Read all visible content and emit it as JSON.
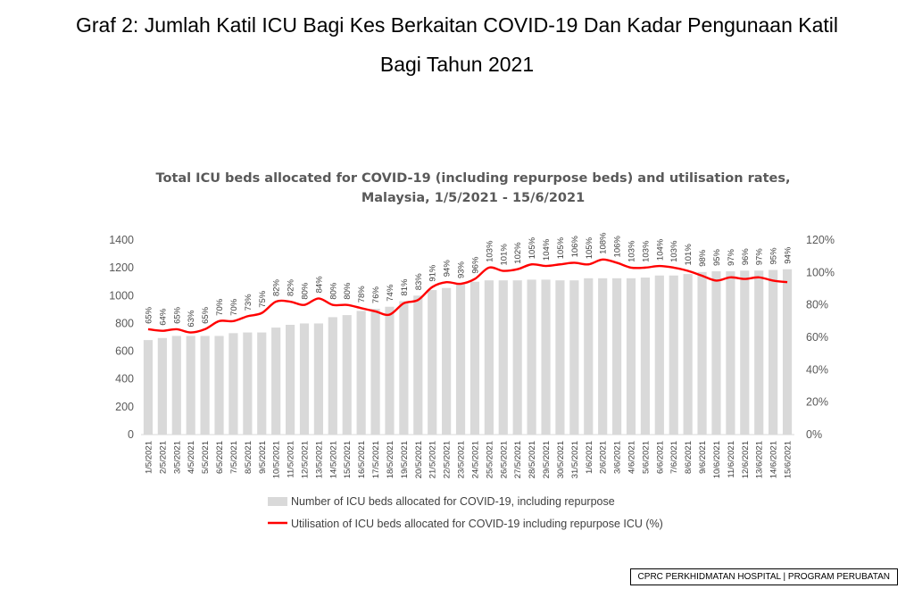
{
  "page": {
    "heading_line1": "Graf 2: Jumlah Katil ICU Bagi Kes Berkaitan COVID-19 Dan Kadar Pengunaan Katil",
    "heading_line2": "Bagi Tahun 2021",
    "footer": "CPRC PERKHIDMATAN HOSPITAL | PROGRAM PERUBATAN"
  },
  "chart_data": {
    "type": "bar",
    "title": "Total ICU beds allocated for COVID-19 (including repurpose beds) and utilisation rates,",
    "subtitle": "Malaysia, 1/5/2021 - 15/6/2021",
    "categories": [
      "1/5/2021",
      "2/5/2021",
      "3/5/2021",
      "4/5/2021",
      "5/5/2021",
      "6/5/2021",
      "7/5/2021",
      "8/5/2021",
      "9/5/2021",
      "10/5/2021",
      "11/5/2021",
      "12/5/2021",
      "13/5/2021",
      "14/5/2021",
      "15/5/2021",
      "16/5/2021",
      "17/5/2021",
      "18/5/2021",
      "19/5/2021",
      "20/5/2021",
      "21/5/2021",
      "22/5/2021",
      "23/5/2021",
      "24/5/2021",
      "25/5/2021",
      "26/5/2021",
      "27/5/2021",
      "28/5/2021",
      "29/5/2021",
      "30/5/2021",
      "31/5/2021",
      "1/6/2021",
      "2/6/2021",
      "3/6/2021",
      "4/6/2021",
      "5/6/2021",
      "6/6/2021",
      "7/6/2021",
      "8/6/2021",
      "9/6/2021",
      "10/6/2021",
      "11/6/2021",
      "12/6/2021",
      "13/6/2021",
      "14/6/2021",
      "15/6/2021"
    ],
    "series": [
      {
        "name": "Number of ICU beds allocated for COVID-19, including repurpose",
        "kind": "bar",
        "axis": "left",
        "color": "#d9d9d9",
        "values": [
          680,
          695,
          710,
          710,
          710,
          710,
          730,
          735,
          735,
          770,
          790,
          800,
          800,
          845,
          860,
          890,
          905,
          920,
          960,
          1000,
          1040,
          1055,
          1080,
          1100,
          1110,
          1110,
          1110,
          1115,
          1115,
          1110,
          1110,
          1125,
          1125,
          1125,
          1125,
          1130,
          1145,
          1145,
          1155,
          1170,
          1175,
          1175,
          1180,
          1180,
          1185,
          1190
        ]
      },
      {
        "name": "Utilisation of ICU beds allocated for COVID-19 including repurpose ICU (%)",
        "kind": "line",
        "axis": "right",
        "color": "#ff0000",
        "values": [
          65,
          64,
          65,
          63,
          65,
          70,
          70,
          73,
          75,
          82,
          82,
          80,
          84,
          80,
          80,
          78,
          76,
          74,
          81,
          83,
          91,
          94,
          93,
          96,
          103,
          101,
          102,
          105,
          104,
          105,
          106,
          105,
          108,
          106,
          103,
          103,
          104,
          103,
          101,
          98,
          95,
          97,
          96,
          97,
          95,
          94
        ]
      }
    ],
    "data_labels": [
      "65%",
      "64%",
      "65%",
      "63%",
      "65%",
      "70%",
      "70%",
      "73%",
      "75%",
      "82%",
      "82%",
      "80%",
      "84%",
      "80%",
      "80%",
      "78%",
      "76%",
      "74%",
      "81%",
      "83%",
      "91%",
      "94%",
      "93%",
      "96%",
      "103%",
      "101%",
      "102%",
      "105%",
      "104%",
      "105%",
      "106%",
      "105%",
      "108%",
      "106%",
      "103%",
      "103%",
      "104%",
      "103%",
      "101%",
      "98%",
      "95%",
      "97%",
      "96%",
      "97%",
      "95%",
      "94%"
    ],
    "left_axis": {
      "ylim": [
        0,
        1400
      ],
      "ticks": [
        "0",
        "200",
        "400",
        "600",
        "800",
        "1000",
        "1200",
        "1400"
      ]
    },
    "right_axis": {
      "ylim": [
        0,
        120
      ],
      "ticks": [
        "0%",
        "20%",
        "40%",
        "60%",
        "80%",
        "100%",
        "120%"
      ]
    },
    "legend_position": "bottom",
    "grid": false
  }
}
